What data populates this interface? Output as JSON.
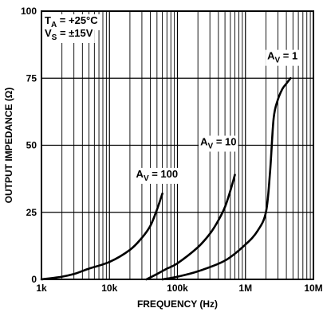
{
  "chart_data": {
    "type": "line",
    "xscale": "log",
    "xlim": [
      1000,
      10000000
    ],
    "ylim": [
      0,
      100
    ],
    "xticks": [
      "1k",
      "10k",
      "100k",
      "1M",
      "10M"
    ],
    "yticks": [
      "0",
      "25",
      "50",
      "75",
      "100"
    ],
    "xlabel": "FREQUENCY (Hz)",
    "ylabel": "OUTPUT IMPEDANCE (Ω)",
    "grid": true,
    "conditions": [
      {
        "pre": "T",
        "sub": "A",
        "post": " = +25°C"
      },
      {
        "pre": "V",
        "sub": "S",
        "post": " = ±15V"
      }
    ],
    "series": [
      {
        "name": "AV = 100",
        "label": {
          "pre": "A",
          "sub": "V",
          "post": " = 100"
        },
        "x": [
          1000,
          2000,
          3000,
          5000,
          10000,
          20000,
          30000,
          40000,
          50000,
          60000
        ],
        "y": [
          0,
          1,
          2,
          4,
          6.5,
          11,
          15.5,
          20,
          26,
          32
        ]
      },
      {
        "name": "AV = 10",
        "label": {
          "pre": "A",
          "sub": "V",
          "post": " = 10"
        },
        "x": [
          35000,
          50000,
          70000,
          100000,
          200000,
          300000,
          400000,
          500000,
          600000,
          700000
        ],
        "y": [
          0,
          2,
          4,
          6,
          12,
          17,
          22,
          27,
          33,
          39
        ]
      },
      {
        "name": "AV = 1",
        "label": {
          "pre": "A",
          "sub": "V",
          "post": " = 1"
        },
        "x": [
          60000,
          100000,
          200000,
          500000,
          1000000,
          1500000,
          2000000,
          2300000,
          2600000,
          3000000,
          3500000,
          4000000,
          4600000
        ],
        "y": [
          0,
          1,
          3,
          7,
          13,
          18,
          25,
          40,
          60,
          67,
          71,
          73,
          75
        ]
      }
    ]
  }
}
